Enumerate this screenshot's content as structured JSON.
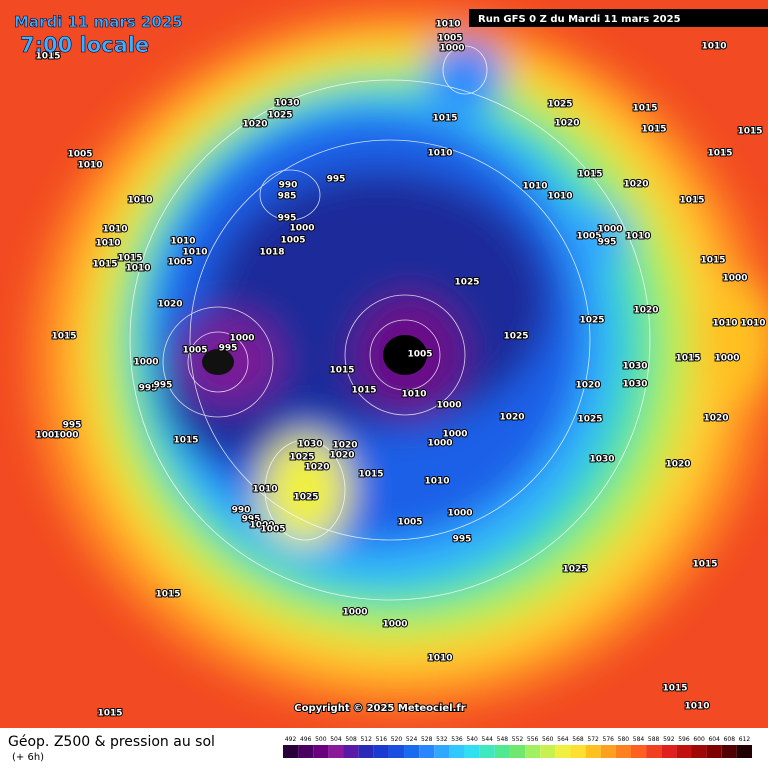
{
  "header": {
    "date": "Mardi 11 mars 2025",
    "time": "7:00 locale",
    "run": "Run GFS 0 Z du Mardi 11 mars 2025"
  },
  "copyright": "Copyright © 2025 Meteociel.fr",
  "footer": {
    "title": "Géop. Z500 & pression au sol",
    "subtitle": "(+ 6h)"
  },
  "scale": {
    "levels": [
      492,
      496,
      500,
      504,
      508,
      512,
      516,
      520,
      524,
      528,
      532,
      536,
      540,
      544,
      548,
      552,
      556,
      560,
      564,
      568,
      572,
      576,
      580,
      584,
      588,
      592,
      596,
      600,
      604,
      608,
      612
    ],
    "colors": [
      "#2a0038",
      "#4a0060",
      "#6a007e",
      "#8a1a9a",
      "#5a1aa8",
      "#2a2ab8",
      "#1a3ad0",
      "#1a50e0",
      "#1a6af0",
      "#2a86ff",
      "#30a8ff",
      "#30c8ff",
      "#30e0f0",
      "#40e8c0",
      "#50e890",
      "#70e870",
      "#a0f060",
      "#c8f050",
      "#f0f040",
      "#ffe030",
      "#ffc020",
      "#ffa020",
      "#ff8020",
      "#ff6020",
      "#f04020",
      "#e02020",
      "#c01010",
      "#a00808",
      "#800000",
      "#500000",
      "#200000"
    ]
  },
  "isobar_labels": [
    1010,
    1005,
    1000,
    1010,
    1015,
    1030,
    1025,
    1020,
    1015,
    1025,
    1015,
    1020,
    1015,
    1015,
    1005,
    1010,
    1010,
    1015,
    990,
    985,
    995,
    995,
    1015,
    1020,
    1010,
    1010,
    1015,
    1010,
    1010,
    1010,
    1010,
    1000,
    1005,
    1018,
    1010,
    1005,
    1015,
    1010,
    1015,
    1005,
    995,
    1000,
    1010,
    1025,
    1015,
    1000,
    1020,
    1025,
    1020,
    1010,
    1010,
    1015,
    1000,
    995,
    1005,
    1025,
    1005,
    1000,
    995,
    995,
    1015,
    1015,
    1010,
    1020,
    1030,
    1030,
    1000,
    1015,
    1000,
    1025,
    995,
    1005,
    1000,
    1015,
    1030,
    1020,
    1020,
    1025,
    1020,
    1000,
    1000,
    1020,
    1020,
    1030,
    1020,
    1015,
    1010,
    1010,
    1025,
    990,
    995,
    1000,
    1005,
    1000,
    1005,
    995,
    1025,
    1015,
    1015,
    1000,
    1000,
    1010,
    1015,
    1010,
    1015
  ]
}
